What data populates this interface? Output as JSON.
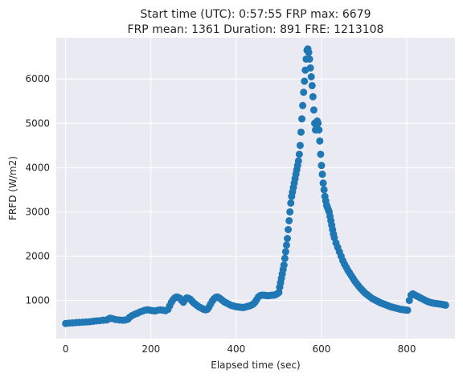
{
  "chart_data": {
    "type": "scatter",
    "title": [
      "Start time (UTC): 0:57:55 FRP max: 6679",
      "FRP mean: 1361 Duration: 891 FRE: 1213108"
    ],
    "xlabel": "Elapsed time (sec)",
    "ylabel": "FRFD (W/m2)",
    "xlim": [
      -22,
      913
    ],
    "ylim": [
      140,
      6930
    ],
    "xticks": [
      0,
      200,
      400,
      600,
      800
    ],
    "yticks": [
      1000,
      2000,
      3000,
      4000,
      5000,
      6000
    ],
    "grid": true,
    "background": "#eaeaf2",
    "marker_color": "#1f77b4",
    "points": [
      [
        0,
        480
      ],
      [
        8,
        490
      ],
      [
        16,
        495
      ],
      [
        24,
        500
      ],
      [
        32,
        505
      ],
      [
        40,
        510
      ],
      [
        48,
        515
      ],
      [
        56,
        520
      ],
      [
        64,
        530
      ],
      [
        72,
        540
      ],
      [
        80,
        545
      ],
      [
        88,
        555
      ],
      [
        96,
        560
      ],
      [
        100,
        580
      ],
      [
        104,
        600
      ],
      [
        110,
        590
      ],
      [
        118,
        570
      ],
      [
        126,
        560
      ],
      [
        134,
        555
      ],
      [
        140,
        560
      ],
      [
        146,
        580
      ],
      [
        150,
        620
      ],
      [
        156,
        660
      ],
      [
        162,
        690
      ],
      [
        168,
        710
      ],
      [
        174,
        740
      ],
      [
        180,
        760
      ],
      [
        186,
        780
      ],
      [
        192,
        790
      ],
      [
        198,
        780
      ],
      [
        204,
        770
      ],
      [
        210,
        765
      ],
      [
        216,
        780
      ],
      [
        222,
        790
      ],
      [
        228,
        780
      ],
      [
        234,
        770
      ],
      [
        240,
        800
      ],
      [
        244,
        880
      ],
      [
        248,
        960
      ],
      [
        252,
        1020
      ],
      [
        256,
        1060
      ],
      [
        260,
        1080
      ],
      [
        264,
        1070
      ],
      [
        268,
        1050
      ],
      [
        272,
        1000
      ],
      [
        276,
        960
      ],
      [
        280,
        1020
      ],
      [
        284,
        1060
      ],
      [
        288,
        1050
      ],
      [
        292,
        1030
      ],
      [
        296,
        990
      ],
      [
        300,
        950
      ],
      [
        304,
        920
      ],
      [
        308,
        890
      ],
      [
        312,
        860
      ],
      [
        316,
        840
      ],
      [
        320,
        820
      ],
      [
        324,
        800
      ],
      [
        328,
        790
      ],
      [
        332,
        800
      ],
      [
        336,
        850
      ],
      [
        340,
        920
      ],
      [
        344,
        990
      ],
      [
        348,
        1040
      ],
      [
        352,
        1070
      ],
      [
        356,
        1080
      ],
      [
        360,
        1060
      ],
      [
        364,
        1030
      ],
      [
        368,
        1000
      ],
      [
        372,
        970
      ],
      [
        376,
        950
      ],
      [
        380,
        930
      ],
      [
        384,
        910
      ],
      [
        388,
        890
      ],
      [
        392,
        880
      ],
      [
        396,
        870
      ],
      [
        400,
        860
      ],
      [
        404,
        855
      ],
      [
        408,
        850
      ],
      [
        412,
        845
      ],
      [
        416,
        840
      ],
      [
        420,
        850
      ],
      [
        424,
        860
      ],
      [
        428,
        870
      ],
      [
        432,
        880
      ],
      [
        436,
        900
      ],
      [
        440,
        920
      ],
      [
        444,
        960
      ],
      [
        448,
        1020
      ],
      [
        452,
        1080
      ],
      [
        456,
        1110
      ],
      [
        460,
        1120
      ],
      [
        464,
        1120
      ],
      [
        468,
        1115
      ],
      [
        472,
        1110
      ],
      [
        476,
        1110
      ],
      [
        480,
        1115
      ],
      [
        484,
        1120
      ],
      [
        488,
        1120
      ],
      [
        492,
        1130
      ],
      [
        496,
        1150
      ],
      [
        500,
        1180
      ],
      [
        502,
        1300
      ],
      [
        504,
        1400
      ],
      [
        506,
        1500
      ],
      [
        508,
        1600
      ],
      [
        510,
        1700
      ],
      [
        512,
        1800
      ],
      [
        514,
        1950
      ],
      [
        516,
        2100
      ],
      [
        518,
        2250
      ],
      [
        520,
        2400
      ],
      [
        522,
        2600
      ],
      [
        524,
        2800
      ],
      [
        526,
        3000
      ],
      [
        528,
        3200
      ],
      [
        530,
        3350
      ],
      [
        532,
        3450
      ],
      [
        534,
        3550
      ],
      [
        536,
        3650
      ],
      [
        538,
        3750
      ],
      [
        540,
        3850
      ],
      [
        542,
        3950
      ],
      [
        544,
        4050
      ],
      [
        546,
        4150
      ],
      [
        548,
        4300
      ],
      [
        550,
        4500
      ],
      [
        552,
        4800
      ],
      [
        554,
        5100
      ],
      [
        556,
        5400
      ],
      [
        558,
        5700
      ],
      [
        560,
        5950
      ],
      [
        562,
        6200
      ],
      [
        564,
        6450
      ],
      [
        566,
        6650
      ],
      [
        568,
        6679
      ],
      [
        570,
        6600
      ],
      [
        572,
        6450
      ],
      [
        574,
        6250
      ],
      [
        576,
        6050
      ],
      [
        578,
        5850
      ],
      [
        580,
        5600
      ],
      [
        582,
        5300
      ],
      [
        584,
        5000
      ],
      [
        586,
        4850
      ],
      [
        588,
        4950
      ],
      [
        590,
        5050
      ],
      [
        592,
        5000
      ],
      [
        594,
        4850
      ],
      [
        596,
        4600
      ],
      [
        598,
        4300
      ],
      [
        600,
        4050
      ],
      [
        602,
        3850
      ],
      [
        604,
        3650
      ],
      [
        606,
        3500
      ],
      [
        608,
        3350
      ],
      [
        610,
        3250
      ],
      [
        612,
        3150
      ],
      [
        614,
        3100
      ],
      [
        616,
        3050
      ],
      [
        618,
        3000
      ],
      [
        620,
        2900
      ],
      [
        622,
        2800
      ],
      [
        624,
        2700
      ],
      [
        626,
        2600
      ],
      [
        628,
        2500
      ],
      [
        630,
        2420
      ],
      [
        634,
        2300
      ],
      [
        638,
        2200
      ],
      [
        642,
        2100
      ],
      [
        646,
        2000
      ],
      [
        650,
        1900
      ],
      [
        654,
        1820
      ],
      [
        658,
        1750
      ],
      [
        662,
        1680
      ],
      [
        666,
        1620
      ],
      [
        670,
        1560
      ],
      [
        674,
        1500
      ],
      [
        678,
        1440
      ],
      [
        682,
        1390
      ],
      [
        686,
        1340
      ],
      [
        690,
        1290
      ],
      [
        694,
        1250
      ],
      [
        698,
        1210
      ],
      [
        702,
        1170
      ],
      [
        706,
        1140
      ],
      [
        710,
        1110
      ],
      [
        714,
        1080
      ],
      [
        718,
        1050
      ],
      [
        722,
        1030
      ],
      [
        726,
        1010
      ],
      [
        730,
        990
      ],
      [
        734,
        970
      ],
      [
        738,
        950
      ],
      [
        742,
        935
      ],
      [
        746,
        920
      ],
      [
        750,
        905
      ],
      [
        754,
        890
      ],
      [
        758,
        875
      ],
      [
        762,
        860
      ],
      [
        766,
        850
      ],
      [
        770,
        840
      ],
      [
        774,
        830
      ],
      [
        778,
        820
      ],
      [
        782,
        810
      ],
      [
        786,
        800
      ],
      [
        790,
        795
      ],
      [
        794,
        790
      ],
      [
        798,
        785
      ],
      [
        802,
        780
      ],
      [
        806,
        1000
      ],
      [
        810,
        1120
      ],
      [
        814,
        1150
      ],
      [
        818,
        1130
      ],
      [
        822,
        1110
      ],
      [
        826,
        1090
      ],
      [
        830,
        1070
      ],
      [
        834,
        1050
      ],
      [
        838,
        1030
      ],
      [
        842,
        1010
      ],
      [
        846,
        990
      ],
      [
        850,
        975
      ],
      [
        854,
        960
      ],
      [
        858,
        950
      ],
      [
        862,
        940
      ],
      [
        866,
        935
      ],
      [
        870,
        930
      ],
      [
        874,
        925
      ],
      [
        878,
        920
      ],
      [
        882,
        915
      ],
      [
        886,
        905
      ],
      [
        890,
        900
      ],
      [
        891,
        895
      ]
    ]
  }
}
